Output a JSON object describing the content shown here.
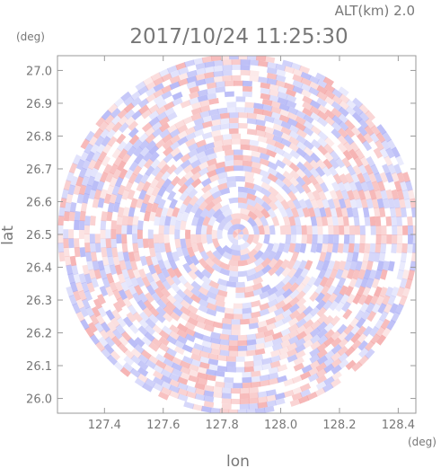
{
  "header": {
    "altitude_label": "ALT(km)  2.0",
    "timestamp": "2017/10/24 11:25:30"
  },
  "chart_data": {
    "type": "heatmap",
    "title": "2017/10/24 11:25:30",
    "subtitle": "ALT(km)  2.0",
    "xlabel": "lon",
    "ylabel": "lat",
    "x_unit": "(deg)",
    "y_unit": "(deg)",
    "xlim": [
      127.24,
      128.46
    ],
    "ylim": [
      25.955,
      27.045
    ],
    "x_ticks": [
      "127.4",
      "127.6",
      "127.8",
      "128.0",
      "128.2",
      "128.4"
    ],
    "x_tick_values": [
      127.4,
      127.6,
      127.8,
      128.0,
      128.2,
      128.4
    ],
    "y_ticks": [
      "26.0",
      "26.1",
      "26.2",
      "26.3",
      "26.4",
      "26.5",
      "26.6",
      "26.7",
      "26.8",
      "26.9",
      "27.0"
    ],
    "y_tick_values": [
      26.0,
      26.1,
      26.2,
      26.3,
      26.4,
      26.5,
      26.6,
      26.7,
      26.8,
      26.9,
      27.0
    ],
    "center": {
      "lon": 127.855,
      "lat": 26.5
    },
    "radius_deg": 0.55,
    "colors": {
      "positive": "#f4a3a3",
      "negative": "#a9acf5",
      "neutral": "#ffffff",
      "axis": "#9a9a9a",
      "text": "#777777"
    }
  }
}
